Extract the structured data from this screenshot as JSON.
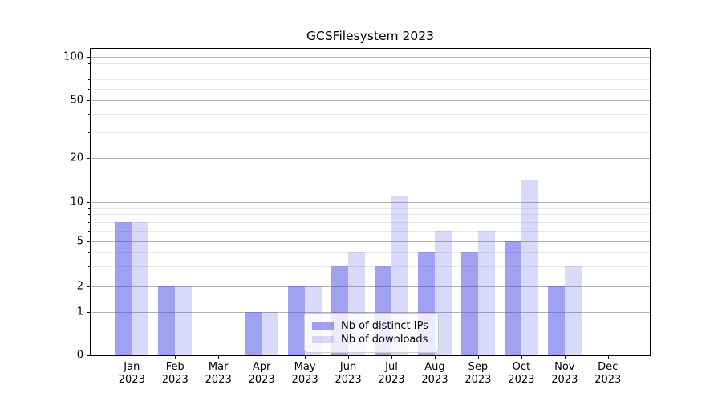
{
  "chart_data": {
    "type": "bar",
    "title": "GCSFilesystem 2023",
    "categories": [
      "Jan",
      "Feb",
      "Mar",
      "Apr",
      "May",
      "Jun",
      "Jul",
      "Aug",
      "Sep",
      "Oct",
      "Nov",
      "Dec"
    ],
    "category_year": "2023",
    "series": [
      {
        "name": "Nb of distinct IPs",
        "color": "rgba(84,84,232,0.55)",
        "values": [
          7,
          2,
          0,
          1,
          2,
          3,
          3,
          4,
          4,
          5,
          2,
          0
        ]
      },
      {
        "name": "Nb of downloads",
        "color": "rgba(84,84,232,0.22)",
        "values": [
          7,
          2,
          0,
          1,
          2,
          4,
          11,
          6,
          6,
          14,
          3,
          0
        ]
      }
    ],
    "yscale": "symlog",
    "ylim": [
      0,
      114
    ],
    "y_ticks_major": [
      0,
      1,
      2,
      5,
      10,
      20,
      50,
      100
    ],
    "y_ticks_minor": [
      3,
      4,
      6,
      7,
      8,
      9,
      30,
      40,
      60,
      70,
      80,
      90
    ],
    "grid": "both",
    "legend_position": "lower center-right inside plot",
    "style": {
      "major_grid_color": "#b0b0b0",
      "minor_grid_color": "#e8e8e8",
      "spine_color": "#000000",
      "text_color": "#000000"
    }
  }
}
